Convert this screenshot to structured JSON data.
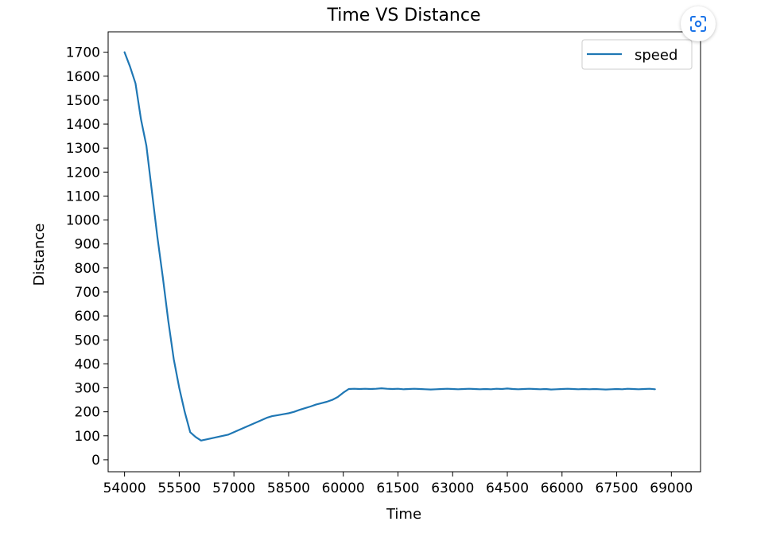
{
  "chart_data": {
    "type": "line",
    "title": "Time VS Distance",
    "xlabel": "Time",
    "ylabel": "Distance",
    "xlim": [
      53550,
      69800
    ],
    "ylim": [
      -50,
      1785
    ],
    "xticks": [
      54000,
      55500,
      57000,
      58500,
      60000,
      61500,
      63000,
      64500,
      66000,
      67500,
      69000
    ],
    "yticks": [
      0,
      100,
      200,
      300,
      400,
      500,
      600,
      700,
      800,
      900,
      1000,
      1100,
      1200,
      1300,
      1400,
      1500,
      1600,
      1700
    ],
    "grid": false,
    "legend": "top-right",
    "series": [
      {
        "name": "speed",
        "color": "#1f77b4",
        "x": [
          54000,
          54150,
          54300,
          54450,
          54600,
          54750,
          54900,
          55050,
          55200,
          55350,
          55500,
          55650,
          55800,
          55950,
          56100,
          56250,
          56400,
          56550,
          56700,
          56850,
          57000,
          57150,
          57300,
          57450,
          57600,
          57750,
          57900,
          58050,
          58200,
          58350,
          58500,
          58650,
          58800,
          58950,
          59100,
          59250,
          59400,
          59550,
          59700,
          59850,
          60000,
          60150,
          60300,
          60450,
          60600,
          60750,
          60900,
          61050,
          61200,
          61350,
          61500,
          61650,
          61800,
          61950,
          62100,
          62250,
          62400,
          62550,
          62700,
          62850,
          63000,
          63150,
          63300,
          63450,
          63600,
          63750,
          63900,
          64050,
          64200,
          64350,
          64500,
          64650,
          64800,
          64950,
          65100,
          65250,
          65400,
          65550,
          65700,
          65850,
          66000,
          66150,
          66300,
          66450,
          66600,
          66750,
          66900,
          67050,
          67200,
          67350,
          67500,
          67650,
          67800,
          67950,
          68100,
          68250,
          68400,
          68550
        ],
        "values": [
          1700,
          1640,
          1570,
          1420,
          1310,
          1120,
          930,
          760,
          580,
          420,
          300,
          200,
          115,
          95,
          80,
          85,
          90,
          95,
          100,
          105,
          115,
          125,
          135,
          145,
          155,
          165,
          175,
          182,
          186,
          190,
          194,
          200,
          208,
          215,
          222,
          230,
          236,
          242,
          250,
          262,
          280,
          295,
          296,
          295,
          296,
          295,
          296,
          298,
          296,
          295,
          296,
          294,
          295,
          296,
          295,
          294,
          293,
          294,
          295,
          296,
          295,
          294,
          295,
          296,
          295,
          294,
          295,
          294,
          296,
          295,
          297,
          295,
          294,
          295,
          296,
          295,
          294,
          295,
          293,
          294,
          295,
          296,
          295,
          294,
          295,
          294,
          295,
          294,
          293,
          294,
          295,
          294,
          296,
          295,
          294,
          295,
          296,
          294
        ]
      }
    ]
  }
}
